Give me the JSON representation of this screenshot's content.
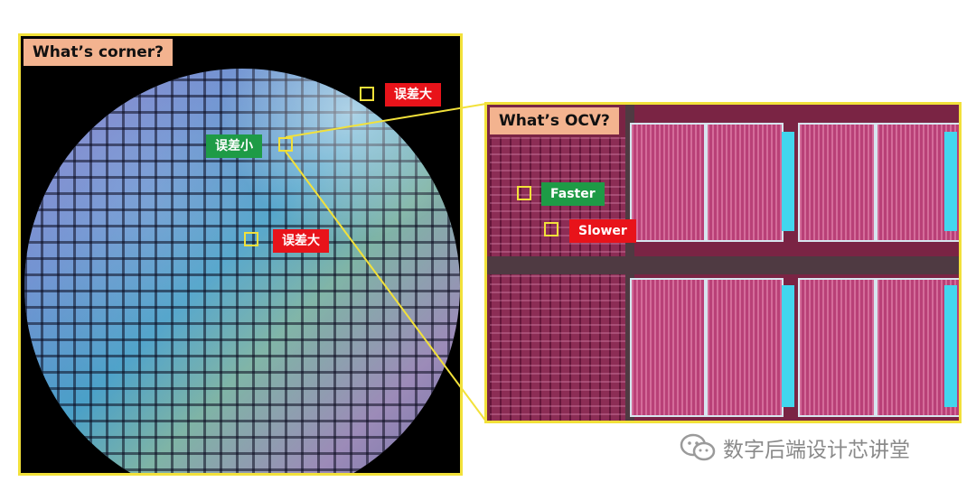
{
  "left_panel": {
    "title": "What’s corner?",
    "labels": {
      "big_error_top": "误差大",
      "small_error": "误差小",
      "big_error_center": "误差大"
    }
  },
  "right_panel": {
    "title": "What’s OCV?",
    "labels": {
      "faster": "Faster",
      "slower": "Slower"
    }
  },
  "watermark": {
    "text": "数字后端设计芯讲堂",
    "icon": "wechat-icon"
  },
  "colors": {
    "frame": "#f2e13a",
    "title_bg": "#f3b38f",
    "red_tag": "#e8131a",
    "green_tag": "#1e9b46"
  }
}
